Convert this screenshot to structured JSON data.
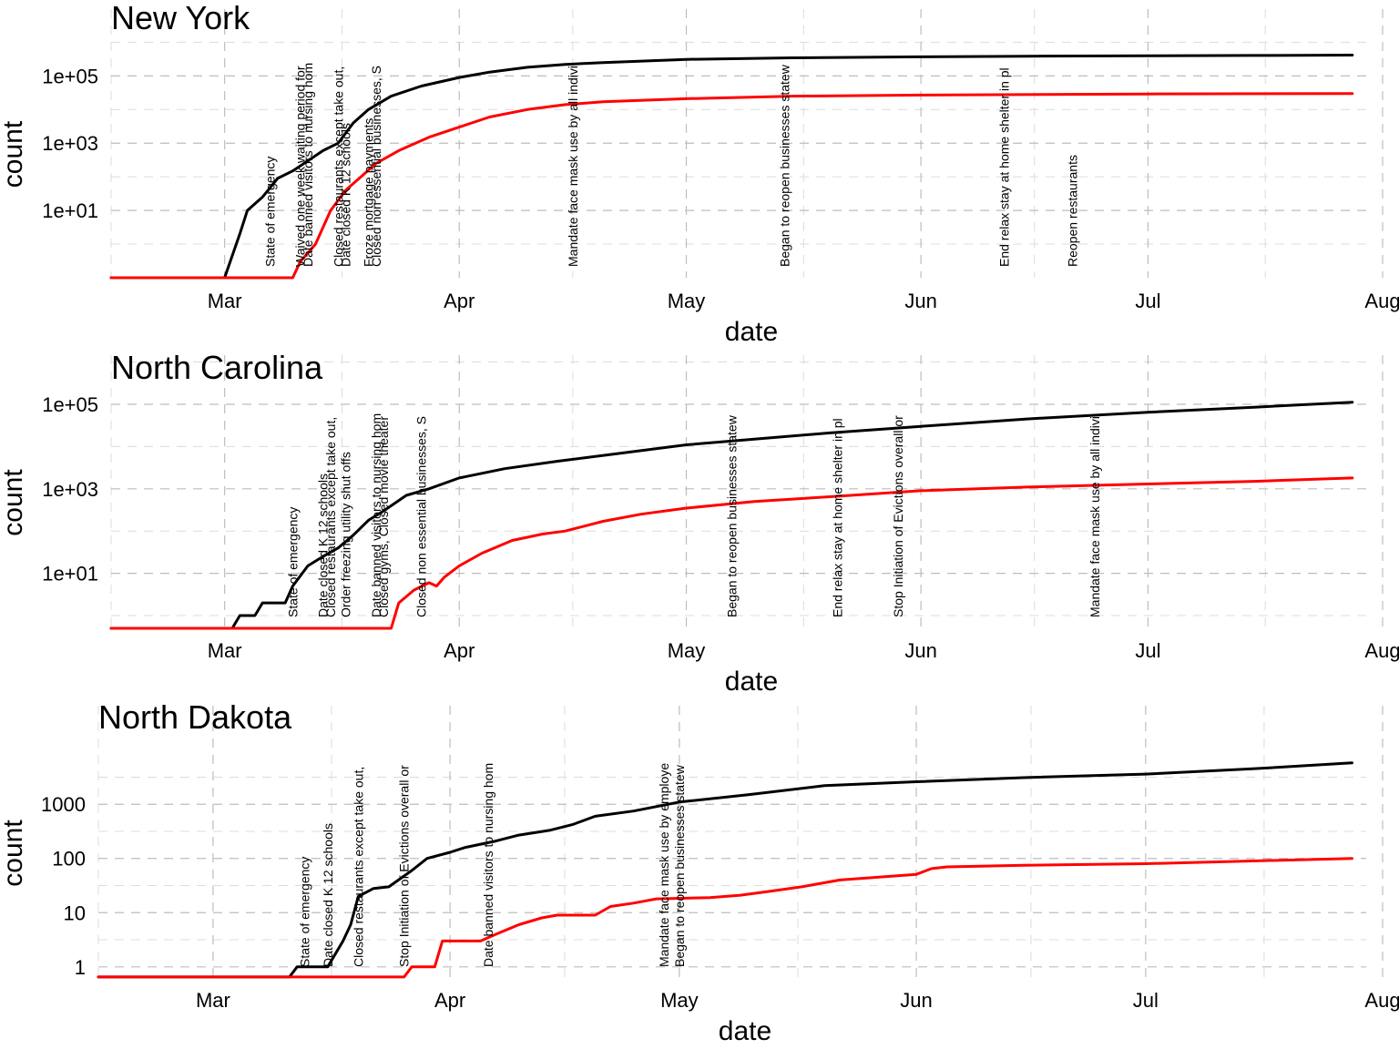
{
  "chart_data": [
    {
      "type": "line",
      "title": "New York",
      "xlabel": "date",
      "ylabel": "count",
      "x_ticks": [
        {
          "label": "Mar",
          "date": "2020-03-01"
        },
        {
          "label": "Apr",
          "date": "2020-04-01"
        },
        {
          "label": "May",
          "date": "2020-05-01"
        },
        {
          "label": "Jun",
          "date": "2020-06-01"
        },
        {
          "label": "Jul",
          "date": "2020-07-01"
        },
        {
          "label": "Aug",
          "date": "2020-08-01"
        }
      ],
      "y_scale": "log10",
      "y_ticks": [
        {
          "label": "1e+01",
          "value": 10
        },
        {
          "label": "1e+03",
          "value": 1000
        },
        {
          "label": "1e+05",
          "value": 100000
        }
      ],
      "xlim": [
        "2020-02-15",
        "2020-08-01"
      ],
      "ylim": [
        0.1,
        800000
      ],
      "grid": true,
      "series": [
        {
          "color": "#000000",
          "points": [
            [
              "2020-02-15",
              0.1
            ],
            [
              "2020-03-01",
              0.1
            ],
            [
              "2020-03-03",
              2
            ],
            [
              "2020-03-04",
              10
            ],
            [
              "2020-03-06",
              25
            ],
            [
              "2020-03-08",
              90
            ],
            [
              "2020-03-10",
              150
            ],
            [
              "2020-03-12",
              300
            ],
            [
              "2020-03-14",
              600
            ],
            [
              "2020-03-16",
              1000
            ],
            [
              "2020-03-18",
              4000
            ],
            [
              "2020-03-20",
              10000
            ],
            [
              "2020-03-23",
              25000
            ],
            [
              "2020-03-27",
              50000
            ],
            [
              "2020-04-01",
              90000
            ],
            [
              "2020-04-05",
              130000
            ],
            [
              "2020-04-10",
              180000
            ],
            [
              "2020-04-15",
              220000
            ],
            [
              "2020-04-20",
              250000
            ],
            [
              "2020-05-01",
              310000
            ],
            [
              "2020-05-15",
              345000
            ],
            [
              "2020-06-01",
              370000
            ],
            [
              "2020-06-15",
              385000
            ],
            [
              "2020-07-01",
              395000
            ],
            [
              "2020-07-15",
              405000
            ],
            [
              "2020-07-28",
              415000
            ]
          ]
        },
        {
          "color": "#ff0000",
          "points": [
            [
              "2020-02-15",
              0.1
            ],
            [
              "2020-03-10",
              0.1
            ],
            [
              "2020-03-11",
              0.3
            ],
            [
              "2020-03-13",
              1
            ],
            [
              "2020-03-15",
              10
            ],
            [
              "2020-03-17",
              40
            ],
            [
              "2020-03-19",
              100
            ],
            [
              "2020-03-21",
              250
            ],
            [
              "2020-03-24",
              600
            ],
            [
              "2020-03-28",
              1500
            ],
            [
              "2020-04-01",
              3000
            ],
            [
              "2020-04-05",
              6000
            ],
            [
              "2020-04-10",
              10000
            ],
            [
              "2020-04-15",
              14000
            ],
            [
              "2020-04-20",
              17000
            ],
            [
              "2020-05-01",
              21000
            ],
            [
              "2020-05-15",
              25000
            ],
            [
              "2020-06-01",
              27000
            ],
            [
              "2020-07-01",
              29000
            ],
            [
              "2020-07-28",
              30000
            ]
          ]
        }
      ],
      "annotations": [
        {
          "text": "State of emergency",
          "date": "2020-03-07"
        },
        {
          "text": "Waived one week waiting period for",
          "date": "2020-03-11"
        },
        {
          "text": "Date banned visitors to nursing hom",
          "date": "2020-03-12"
        },
        {
          "text": "Closed restaurants except take out,",
          "date": "2020-03-16"
        },
        {
          "text": "Date closed K 12 schools",
          "date": "2020-03-17"
        },
        {
          "text": "Froze mortgage payments",
          "date": "2020-03-20"
        },
        {
          "text": "Closed non essential businesses, S",
          "date": "2020-03-21"
        },
        {
          "text": "Mandate face mask use by all indivi",
          "date": "2020-04-16"
        },
        {
          "text": "Began to reopen businesses statew",
          "date": "2020-05-14"
        },
        {
          "text": "End relax stay at home shelter in pl",
          "date": "2020-06-12"
        },
        {
          "text": "Reopen restaurants",
          "date": "2020-06-21"
        }
      ]
    },
    {
      "type": "line",
      "title": "North Carolina",
      "xlabel": "date",
      "ylabel": "count",
      "x_ticks": [
        {
          "label": "Mar",
          "date": "2020-03-01"
        },
        {
          "label": "Apr",
          "date": "2020-04-01"
        },
        {
          "label": "May",
          "date": "2020-05-01"
        },
        {
          "label": "Jun",
          "date": "2020-06-01"
        },
        {
          "label": "Jul",
          "date": "2020-07-01"
        },
        {
          "label": "Aug",
          "date": "2020-08-01"
        }
      ],
      "y_scale": "log10",
      "y_ticks": [
        {
          "label": "1e+01",
          "value": 10
        },
        {
          "label": "1e+03",
          "value": 1000
        },
        {
          "label": "1e+05",
          "value": 100000
        }
      ],
      "xlim": [
        "2020-02-15",
        "2020-08-01"
      ],
      "ylim": [
        0.5,
        200000
      ],
      "grid": true,
      "series": [
        {
          "color": "#000000",
          "points": [
            [
              "2020-02-15",
              0.5
            ],
            [
              "2020-03-02",
              0.5
            ],
            [
              "2020-03-03",
              1
            ],
            [
              "2020-03-05",
              1
            ],
            [
              "2020-03-06",
              2
            ],
            [
              "2020-03-09",
              2
            ],
            [
              "2020-03-10",
              5
            ],
            [
              "2020-03-12",
              15
            ],
            [
              "2020-03-14",
              25
            ],
            [
              "2020-03-16",
              40
            ],
            [
              "2020-03-18",
              80
            ],
            [
              "2020-03-20",
              180
            ],
            [
              "2020-03-22",
              300
            ],
            [
              "2020-03-25",
              700
            ],
            [
              "2020-03-28",
              1000
            ],
            [
              "2020-04-01",
              1800
            ],
            [
              "2020-04-07",
              3000
            ],
            [
              "2020-04-14",
              4500
            ],
            [
              "2020-04-21",
              6500
            ],
            [
              "2020-05-01",
              11000
            ],
            [
              "2020-05-10",
              15000
            ],
            [
              "2020-05-20",
              21000
            ],
            [
              "2020-06-01",
              30000
            ],
            [
              "2020-06-15",
              45000
            ],
            [
              "2020-07-01",
              65000
            ],
            [
              "2020-07-15",
              85000
            ],
            [
              "2020-07-28",
              112000
            ]
          ]
        },
        {
          "color": "#ff0000",
          "points": [
            [
              "2020-02-15",
              0.5
            ],
            [
              "2020-03-23",
              0.5
            ],
            [
              "2020-03-24",
              2
            ],
            [
              "2020-03-26",
              4
            ],
            [
              "2020-03-28",
              6
            ],
            [
              "2020-03-29",
              5
            ],
            [
              "2020-03-30",
              8
            ],
            [
              "2020-04-01",
              15
            ],
            [
              "2020-04-04",
              30
            ],
            [
              "2020-04-08",
              60
            ],
            [
              "2020-04-12",
              85
            ],
            [
              "2020-04-15",
              100
            ],
            [
              "2020-04-20",
              170
            ],
            [
              "2020-04-25",
              250
            ],
            [
              "2020-05-01",
              350
            ],
            [
              "2020-05-10",
              500
            ],
            [
              "2020-05-20",
              650
            ],
            [
              "2020-06-01",
              900
            ],
            [
              "2020-06-15",
              1100
            ],
            [
              "2020-07-01",
              1300
            ],
            [
              "2020-07-15",
              1500
            ],
            [
              "2020-07-28",
              1800
            ]
          ]
        }
      ],
      "annotations": [
        {
          "text": "State of emergency",
          "date": "2020-03-10"
        },
        {
          "text": "Date closed K 12 schools",
          "date": "2020-03-14"
        },
        {
          "text": "Closed restaurants except take out,",
          "date": "2020-03-15"
        },
        {
          "text": "Order freezing utility shut offs",
          "date": "2020-03-17"
        },
        {
          "text": "Date banned visitors to nursing hom",
          "date": "2020-03-21"
        },
        {
          "text": "Closed gyms, Closed movie theater",
          "date": "2020-03-22"
        },
        {
          "text": "Closed non essential businesses, S",
          "date": "2020-03-27"
        },
        {
          "text": "Began to reopen businesses statew",
          "date": "2020-05-07"
        },
        {
          "text": "End relax stay at home shelter in pl",
          "date": "2020-05-21"
        },
        {
          "text": "Stop Initiation of Evictions overall or",
          "date": "2020-05-29"
        },
        {
          "text": "Mandate face mask use by all indivi",
          "date": "2020-06-24"
        }
      ]
    },
    {
      "type": "line",
      "title": "North Dakota",
      "xlabel": "date",
      "ylabel": "count",
      "x_ticks": [
        {
          "label": "Mar",
          "date": "2020-03-01"
        },
        {
          "label": "Apr",
          "date": "2020-04-01"
        },
        {
          "label": "May",
          "date": "2020-05-01"
        },
        {
          "label": "Jun",
          "date": "2020-06-01"
        },
        {
          "label": "Jul",
          "date": "2020-07-01"
        },
        {
          "label": "Aug",
          "date": "2020-08-01"
        }
      ],
      "y_scale": "log10",
      "y_ticks": [
        {
          "label": "1",
          "value": 1
        },
        {
          "label": "10",
          "value": 10
        },
        {
          "label": "100",
          "value": 100
        },
        {
          "label": "1000",
          "value": 1000
        }
      ],
      "xlim": [
        "2020-02-15",
        "2020-08-01"
      ],
      "ylim": [
        0.6,
        14000
      ],
      "grid": true,
      "series": [
        {
          "color": "#000000",
          "points": [
            [
              "2020-02-15",
              0.65
            ],
            [
              "2020-03-11",
              0.65
            ],
            [
              "2020-03-12",
              1
            ],
            [
              "2020-03-16",
              1
            ],
            [
              "2020-03-18",
              3
            ],
            [
              "2020-03-19",
              6
            ],
            [
              "2020-03-20",
              20
            ],
            [
              "2020-03-22",
              28
            ],
            [
              "2020-03-24",
              30
            ],
            [
              "2020-03-27",
              60
            ],
            [
              "2020-03-29",
              100
            ],
            [
              "2020-04-01",
              130
            ],
            [
              "2020-04-03",
              160
            ],
            [
              "2020-04-07",
              210
            ],
            [
              "2020-04-10",
              270
            ],
            [
              "2020-04-14",
              330
            ],
            [
              "2020-04-17",
              420
            ],
            [
              "2020-04-20",
              600
            ],
            [
              "2020-04-25",
              750
            ],
            [
              "2020-05-01",
              1100
            ],
            [
              "2020-05-10",
              1500
            ],
            [
              "2020-05-20",
              2200
            ],
            [
              "2020-06-01",
              2600
            ],
            [
              "2020-06-15",
              3100
            ],
            [
              "2020-07-01",
              3600
            ],
            [
              "2020-07-15",
              4500
            ],
            [
              "2020-07-28",
              5800
            ]
          ]
        },
        {
          "color": "#ff0000",
          "points": [
            [
              "2020-02-15",
              0.65
            ],
            [
              "2020-03-26",
              0.65
            ],
            [
              "2020-03-27",
              1
            ],
            [
              "2020-03-30",
              1
            ],
            [
              "2020-03-31",
              3
            ],
            [
              "2020-04-05",
              3
            ],
            [
              "2020-04-07",
              4
            ],
            [
              "2020-04-10",
              6
            ],
            [
              "2020-04-13",
              8
            ],
            [
              "2020-04-15",
              9
            ],
            [
              "2020-04-20",
              9
            ],
            [
              "2020-04-22",
              13
            ],
            [
              "2020-04-25",
              15
            ],
            [
              "2020-04-28",
              18
            ],
            [
              "2020-05-05",
              19
            ],
            [
              "2020-05-09",
              21
            ],
            [
              "2020-05-13",
              25
            ],
            [
              "2020-05-17",
              30
            ],
            [
              "2020-05-22",
              40
            ],
            [
              "2020-06-01",
              51
            ],
            [
              "2020-06-03",
              65
            ],
            [
              "2020-06-05",
              70
            ],
            [
              "2020-06-15",
              75
            ],
            [
              "2020-07-01",
              80
            ],
            [
              "2020-07-15",
              90
            ],
            [
              "2020-07-28",
              100
            ]
          ]
        }
      ],
      "annotations": [
        {
          "text": "State of emergency",
          "date": "2020-03-13"
        },
        {
          "text": "Date closed K 12 schools",
          "date": "2020-03-16"
        },
        {
          "text": "Closed restaurants except take out,",
          "date": "2020-03-20"
        },
        {
          "text": "Stop Initiation of Evictions overall or",
          "date": "2020-03-26"
        },
        {
          "text": "Date banned visitors to nursing hom",
          "date": "2020-04-06"
        },
        {
          "text": "Mandate face mask use by employe",
          "date": "2020-04-29"
        },
        {
          "text": "Began to reopen businesses statew",
          "date": "2020-05-01"
        }
      ]
    }
  ]
}
